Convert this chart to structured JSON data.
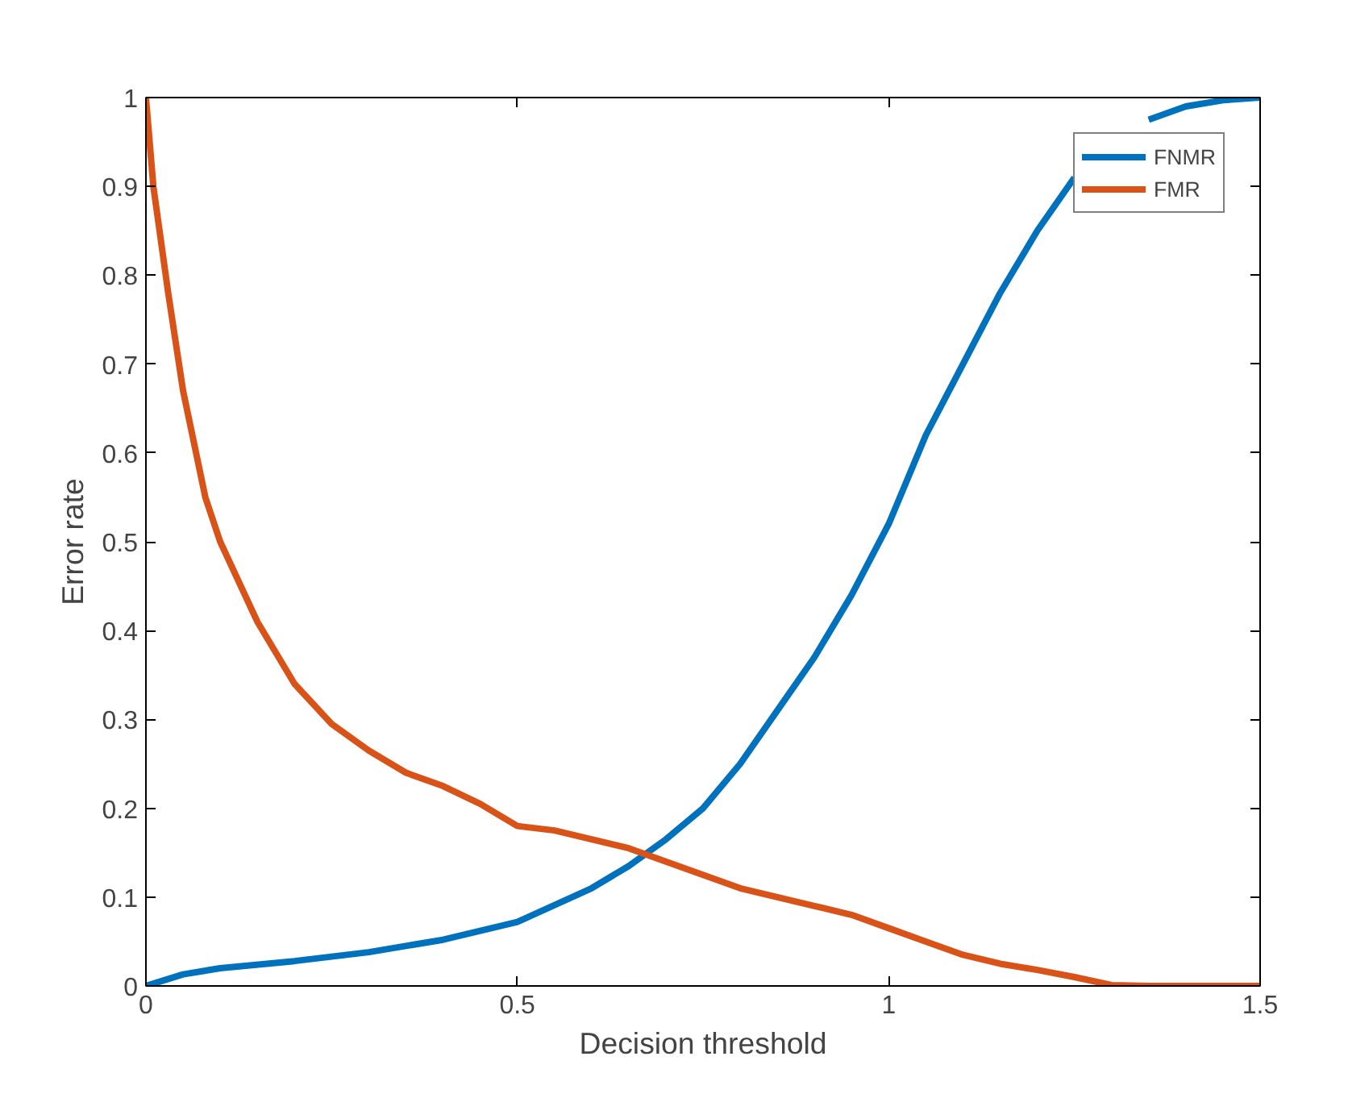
{
  "chart_data": {
    "type": "line",
    "xlabel": "Decision threshold",
    "ylabel": "Error rate",
    "xlim": [
      0,
      1.5
    ],
    "ylim": [
      0,
      1
    ],
    "xticks": [
      0,
      0.5,
      1,
      1.5
    ],
    "yticks": [
      0,
      0.1,
      0.2,
      0.3,
      0.4,
      0.5,
      0.6,
      0.7,
      0.8,
      0.9,
      1
    ],
    "grid": false,
    "legend": "top right",
    "line_style": "solid",
    "marker": "none",
    "series": [
      {
        "name": "FNMR",
        "color": "#0072bd",
        "x": [
          0,
          0.05,
          0.1,
          0.2,
          0.3,
          0.4,
          0.5,
          0.6,
          0.65,
          0.7,
          0.75,
          0.8,
          0.85,
          0.9,
          0.95,
          1.0,
          1.05,
          1.1,
          1.15,
          1.2,
          1.25,
          1.3,
          1.35,
          1.4,
          1.45,
          1.5
        ],
        "values": [
          0,
          0.013,
          0.02,
          0.028,
          0.038,
          0.052,
          0.072,
          0.11,
          0.135,
          0.165,
          0.2,
          0.25,
          0.31,
          0.37,
          0.44,
          0.52,
          0.62,
          0.7,
          0.78,
          0.85,
          0.91,
          null,
          0.975,
          0.99,
          0.997,
          1.0
        ]
      },
      {
        "name": "FMR",
        "color": "#d95319",
        "x": [
          0,
          0.01,
          0.03,
          0.05,
          0.08,
          0.1,
          0.15,
          0.2,
          0.25,
          0.3,
          0.35,
          0.4,
          0.45,
          0.5,
          0.55,
          0.6,
          0.65,
          0.7,
          0.75,
          0.8,
          0.85,
          0.9,
          0.95,
          1.0,
          1.05,
          1.1,
          1.15,
          1.2,
          1.25,
          1.3,
          1.35,
          1.4,
          1.5
        ],
        "values": [
          1,
          0.9,
          0.78,
          0.67,
          0.55,
          0.5,
          0.41,
          0.34,
          0.295,
          0.265,
          0.24,
          0.225,
          0.205,
          0.18,
          0.175,
          0.165,
          0.155,
          0.14,
          0.125,
          0.11,
          0.1,
          0.09,
          0.08,
          0.065,
          0.05,
          0.035,
          0.025,
          0.018,
          0.01,
          0.001,
          0,
          0,
          0
        ]
      }
    ]
  }
}
